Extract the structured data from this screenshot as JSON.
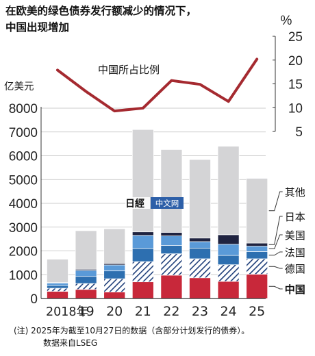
{
  "title_lines": [
    "在欧美的绿色债券发行额减少的情况下，",
    "中国出现增加"
  ],
  "watermark": "日經中文网",
  "notes": [
    "(注) 2025年为截至10月27日的数据（含部分计划发行的债券）。",
    "数据来自LSEG"
  ],
  "colors": {
    "china": "#c8283a",
    "germany_hatch": "#1f3f7a",
    "france": "#2d6fb0",
    "usa": "#5a9ad8",
    "japan": "#1f2340",
    "other": "#d4d4d6",
    "share_line": "#a52a30"
  },
  "chart_data": [
    {
      "type": "bar",
      "stacked": true,
      "ylabel": "亿美元",
      "ylim": [
        0,
        8000
      ],
      "yticks": [
        0,
        1000,
        2000,
        3000,
        4000,
        5000,
        6000,
        7000,
        8000
      ],
      "grid": true,
      "categories": [
        "2018年",
        "19",
        "20",
        "21",
        "22",
        "23",
        "24",
        "25"
      ],
      "series": [
        {
          "name": "中国",
          "color_key": "china",
          "values": [
            300,
            380,
            270,
            700,
            980,
            870,
            720,
            1020
          ]
        },
        {
          "name": "德国",
          "color_key": "germany_hatch",
          "values": [
            130,
            250,
            560,
            850,
            900,
            800,
            700,
            650
          ]
        },
        {
          "name": "法国",
          "color_key": "france",
          "values": [
            120,
            300,
            330,
            550,
            350,
            450,
            390,
            300
          ]
        },
        {
          "name": "美国",
          "color_key": "usa",
          "values": [
            100,
            250,
            250,
            550,
            400,
            270,
            470,
            230
          ]
        },
        {
          "name": "日本",
          "color_key": "japan",
          "values": [
            20,
            50,
            60,
            150,
            150,
            150,
            400,
            130
          ]
        },
        {
          "name": "其他",
          "color_key": "other",
          "values": [
            980,
            1620,
            1460,
            4300,
            3480,
            3300,
            3720,
            2720
          ]
        }
      ],
      "legend_placement": "right, next to the 2025 bar"
    },
    {
      "type": "line",
      "ylabel": "%",
      "ylim": [
        5,
        25
      ],
      "yticks": [
        5,
        10,
        15,
        20,
        25
      ],
      "axis_side": "right",
      "series": [
        {
          "name": "中国所占比例",
          "color_key": "share_line",
          "values": [
            17.9,
            13.4,
            9.3,
            9.9,
            15.7,
            14.9,
            11.3,
            20.2
          ]
        }
      ]
    }
  ]
}
